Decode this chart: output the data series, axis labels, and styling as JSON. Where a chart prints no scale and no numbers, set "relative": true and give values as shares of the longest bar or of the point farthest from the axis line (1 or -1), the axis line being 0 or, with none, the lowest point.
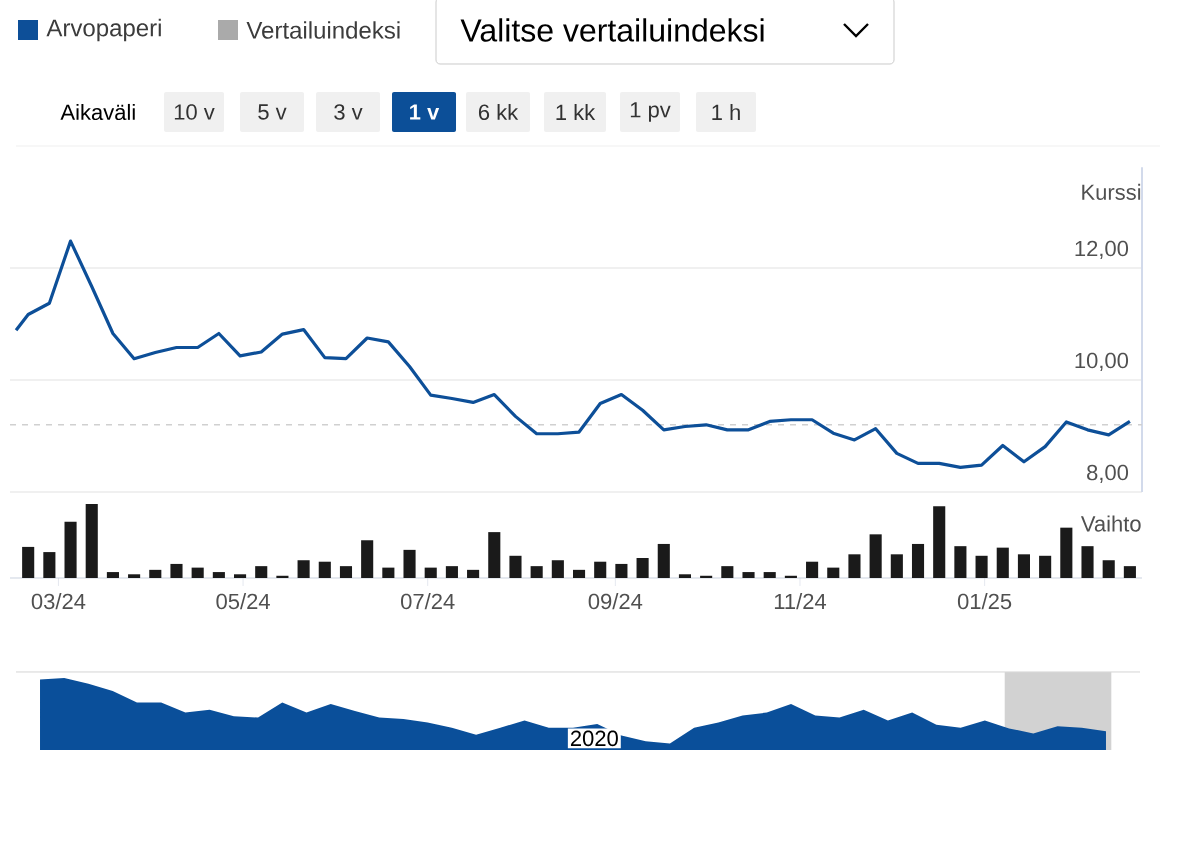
{
  "chart_data": [
    {
      "type": "other",
      "annotations": [
        "Vertailuindeksi",
        "Valitse vertailuindeksi",
        "Aikaväli",
        "10 v",
        "5 v",
        "3 v",
        "1 v",
        "6 kk",
        "1 kk",
        "1 pv",
        "1 h"
      ]
    },
    {
      "type": "line",
      "ylabel": "Kurssi",
      "legend": "top left",
      "grid": "y",
      "tick_labels": "y",
      "xlim": [
        "2024-02-14",
        "2025-02-22"
      ],
      "ylim": [
        8,
        13.8
      ],
      "yticks": [
        {
          "value": 8,
          "label": "8,00"
        },
        {
          "value": 10,
          "label": "10,00"
        },
        {
          "value": 12,
          "label": "12,00"
        }
      ],
      "ref_lines": [
        {
          "axis": "y",
          "value": 9.2,
          "color": "#d0d0d0",
          "line_style": "dashed"
        }
      ],
      "series": [
        {
          "name": "Arvopaperi",
          "color": "#0d4f98",
          "x": [
            "2024-02-16",
            "2024-02-20",
            "2024-02-27",
            "2024-03-05",
            "2024-03-12",
            "2024-03-19",
            "2024-03-26",
            "2024-04-02",
            "2024-04-09",
            "2024-04-16",
            "2024-04-23",
            "2024-04-30",
            "2024-05-07",
            "2024-05-14",
            "2024-05-21",
            "2024-05-28",
            "2024-06-04",
            "2024-06-11",
            "2024-06-18",
            "2024-06-25",
            "2024-07-02",
            "2024-07-09",
            "2024-07-16",
            "2024-07-23",
            "2024-07-30",
            "2024-08-06",
            "2024-08-13",
            "2024-08-20",
            "2024-08-27",
            "2024-09-03",
            "2024-09-10",
            "2024-09-17",
            "2024-09-24",
            "2024-10-01",
            "2024-10-08",
            "2024-10-15",
            "2024-10-22",
            "2024-10-29",
            "2024-11-05",
            "2024-11-12",
            "2024-11-19",
            "2024-11-26",
            "2024-12-03",
            "2024-12-10",
            "2024-12-17",
            "2024-12-24",
            "2024-12-31",
            "2025-01-07",
            "2025-01-14",
            "2025-01-21",
            "2025-01-28",
            "2025-02-04",
            "2025-02-11",
            "2025-02-18"
          ],
          "values": [
            10.89,
            11.17,
            11.37,
            12.48,
            11.67,
            10.83,
            10.38,
            10.49,
            10.58,
            10.58,
            10.83,
            10.43,
            10.5,
            10.82,
            10.9,
            10.4,
            10.38,
            10.75,
            10.68,
            10.24,
            9.73,
            9.67,
            9.6,
            9.74,
            9.35,
            9.04,
            9.04,
            9.07,
            9.58,
            9.74,
            9.46,
            9.11,
            9.17,
            9.2,
            9.11,
            9.11,
            9.26,
            9.29,
            9.29,
            9.05,
            8.93,
            9.13,
            8.69,
            8.51,
            8.51,
            8.44,
            8.48,
            8.83,
            8.54,
            8.81,
            9.25,
            9.11,
            9.02,
            9.26
          ]
        }
      ]
    },
    {
      "type": "bar",
      "ylabel": "Vaihto",
      "relative": true,
      "color": "#1a1a1a",
      "xlim": [
        "2024-02-14",
        "2025-02-22"
      ],
      "xticks": [
        {
          "value": "2024-03-01",
          "label": "03/24"
        },
        {
          "value": "2024-05-01",
          "label": "05/24"
        },
        {
          "value": "2024-07-01",
          "label": "07/24"
        },
        {
          "value": "2024-09-01",
          "label": "09/24"
        },
        {
          "value": "2024-11-01",
          "label": "11/24"
        },
        {
          "value": "2025-01-01",
          "label": "01/25"
        }
      ],
      "x": [
        "2024-02-20",
        "2024-02-27",
        "2024-03-05",
        "2024-03-12",
        "2024-03-19",
        "2024-03-26",
        "2024-04-02",
        "2024-04-09",
        "2024-04-16",
        "2024-04-23",
        "2024-04-30",
        "2024-05-07",
        "2024-05-14",
        "2024-05-21",
        "2024-05-28",
        "2024-06-04",
        "2024-06-11",
        "2024-06-18",
        "2024-06-25",
        "2024-07-02",
        "2024-07-09",
        "2024-07-16",
        "2024-07-23",
        "2024-07-30",
        "2024-08-06",
        "2024-08-13",
        "2024-08-20",
        "2024-08-27",
        "2024-09-03",
        "2024-09-10",
        "2024-09-17",
        "2024-09-24",
        "2024-10-01",
        "2024-10-08",
        "2024-10-15",
        "2024-10-22",
        "2024-10-29",
        "2024-11-05",
        "2024-11-12",
        "2024-11-19",
        "2024-11-26",
        "2024-12-03",
        "2024-12-10",
        "2024-12-17",
        "2024-12-24",
        "2024-12-31",
        "2025-01-07",
        "2025-01-14",
        "2025-01-21",
        "2025-01-28",
        "2025-02-04",
        "2025-02-11",
        "2025-02-18"
      ],
      "values": [
        0.42,
        0.35,
        0.76,
        1,
        0.08,
        0.05,
        0.11,
        0.19,
        0.14,
        0.08,
        0.05,
        0.16,
        0.03,
        0.24,
        0.22,
        0.16,
        0.51,
        0.14,
        0.38,
        0.14,
        0.16,
        0.11,
        0.62,
        0.3,
        0.16,
        0.24,
        0.11,
        0.22,
        0.19,
        0.27,
        0.46,
        0.05,
        0.03,
        0.16,
        0.08,
        0.08,
        0.03,
        0.22,
        0.14,
        0.32,
        0.59,
        0.32,
        0.46,
        0.97,
        0.43,
        0.3,
        0.41,
        0.32,
        0.3,
        0.68,
        0.43,
        0.24,
        0.16
      ]
    },
    {
      "type": "area",
      "relative": true,
      "color": "#0a4f9a",
      "annotations": [
        "2020"
      ],
      "categories": [
        null,
        null,
        null,
        null,
        null,
        null,
        null,
        null,
        null,
        null,
        null,
        null,
        null,
        null,
        null,
        null,
        null,
        null,
        null,
        null,
        null,
        null,
        null,
        null,
        null,
        null,
        null,
        null,
        null,
        null,
        null,
        null,
        null,
        null,
        null,
        null,
        null,
        null,
        null,
        null,
        null,
        null,
        null,
        null,
        null
      ],
      "values": [
        0.98,
        1,
        0.92,
        0.82,
        0.66,
        0.66,
        0.52,
        0.56,
        0.47,
        0.45,
        0.66,
        0.52,
        0.64,
        0.54,
        0.45,
        0.43,
        0.38,
        0.31,
        0.21,
        0.31,
        0.41,
        0.31,
        0.31,
        0.36,
        0.2,
        0.12,
        0.09,
        0.31,
        0.38,
        0.48,
        0.52,
        0.64,
        0.48,
        0.45,
        0.56,
        0.41,
        0.52,
        0.35,
        0.31,
        0.41,
        0.3,
        0.23,
        0.33,
        0.31,
        0.26
      ]
    }
  ]
}
